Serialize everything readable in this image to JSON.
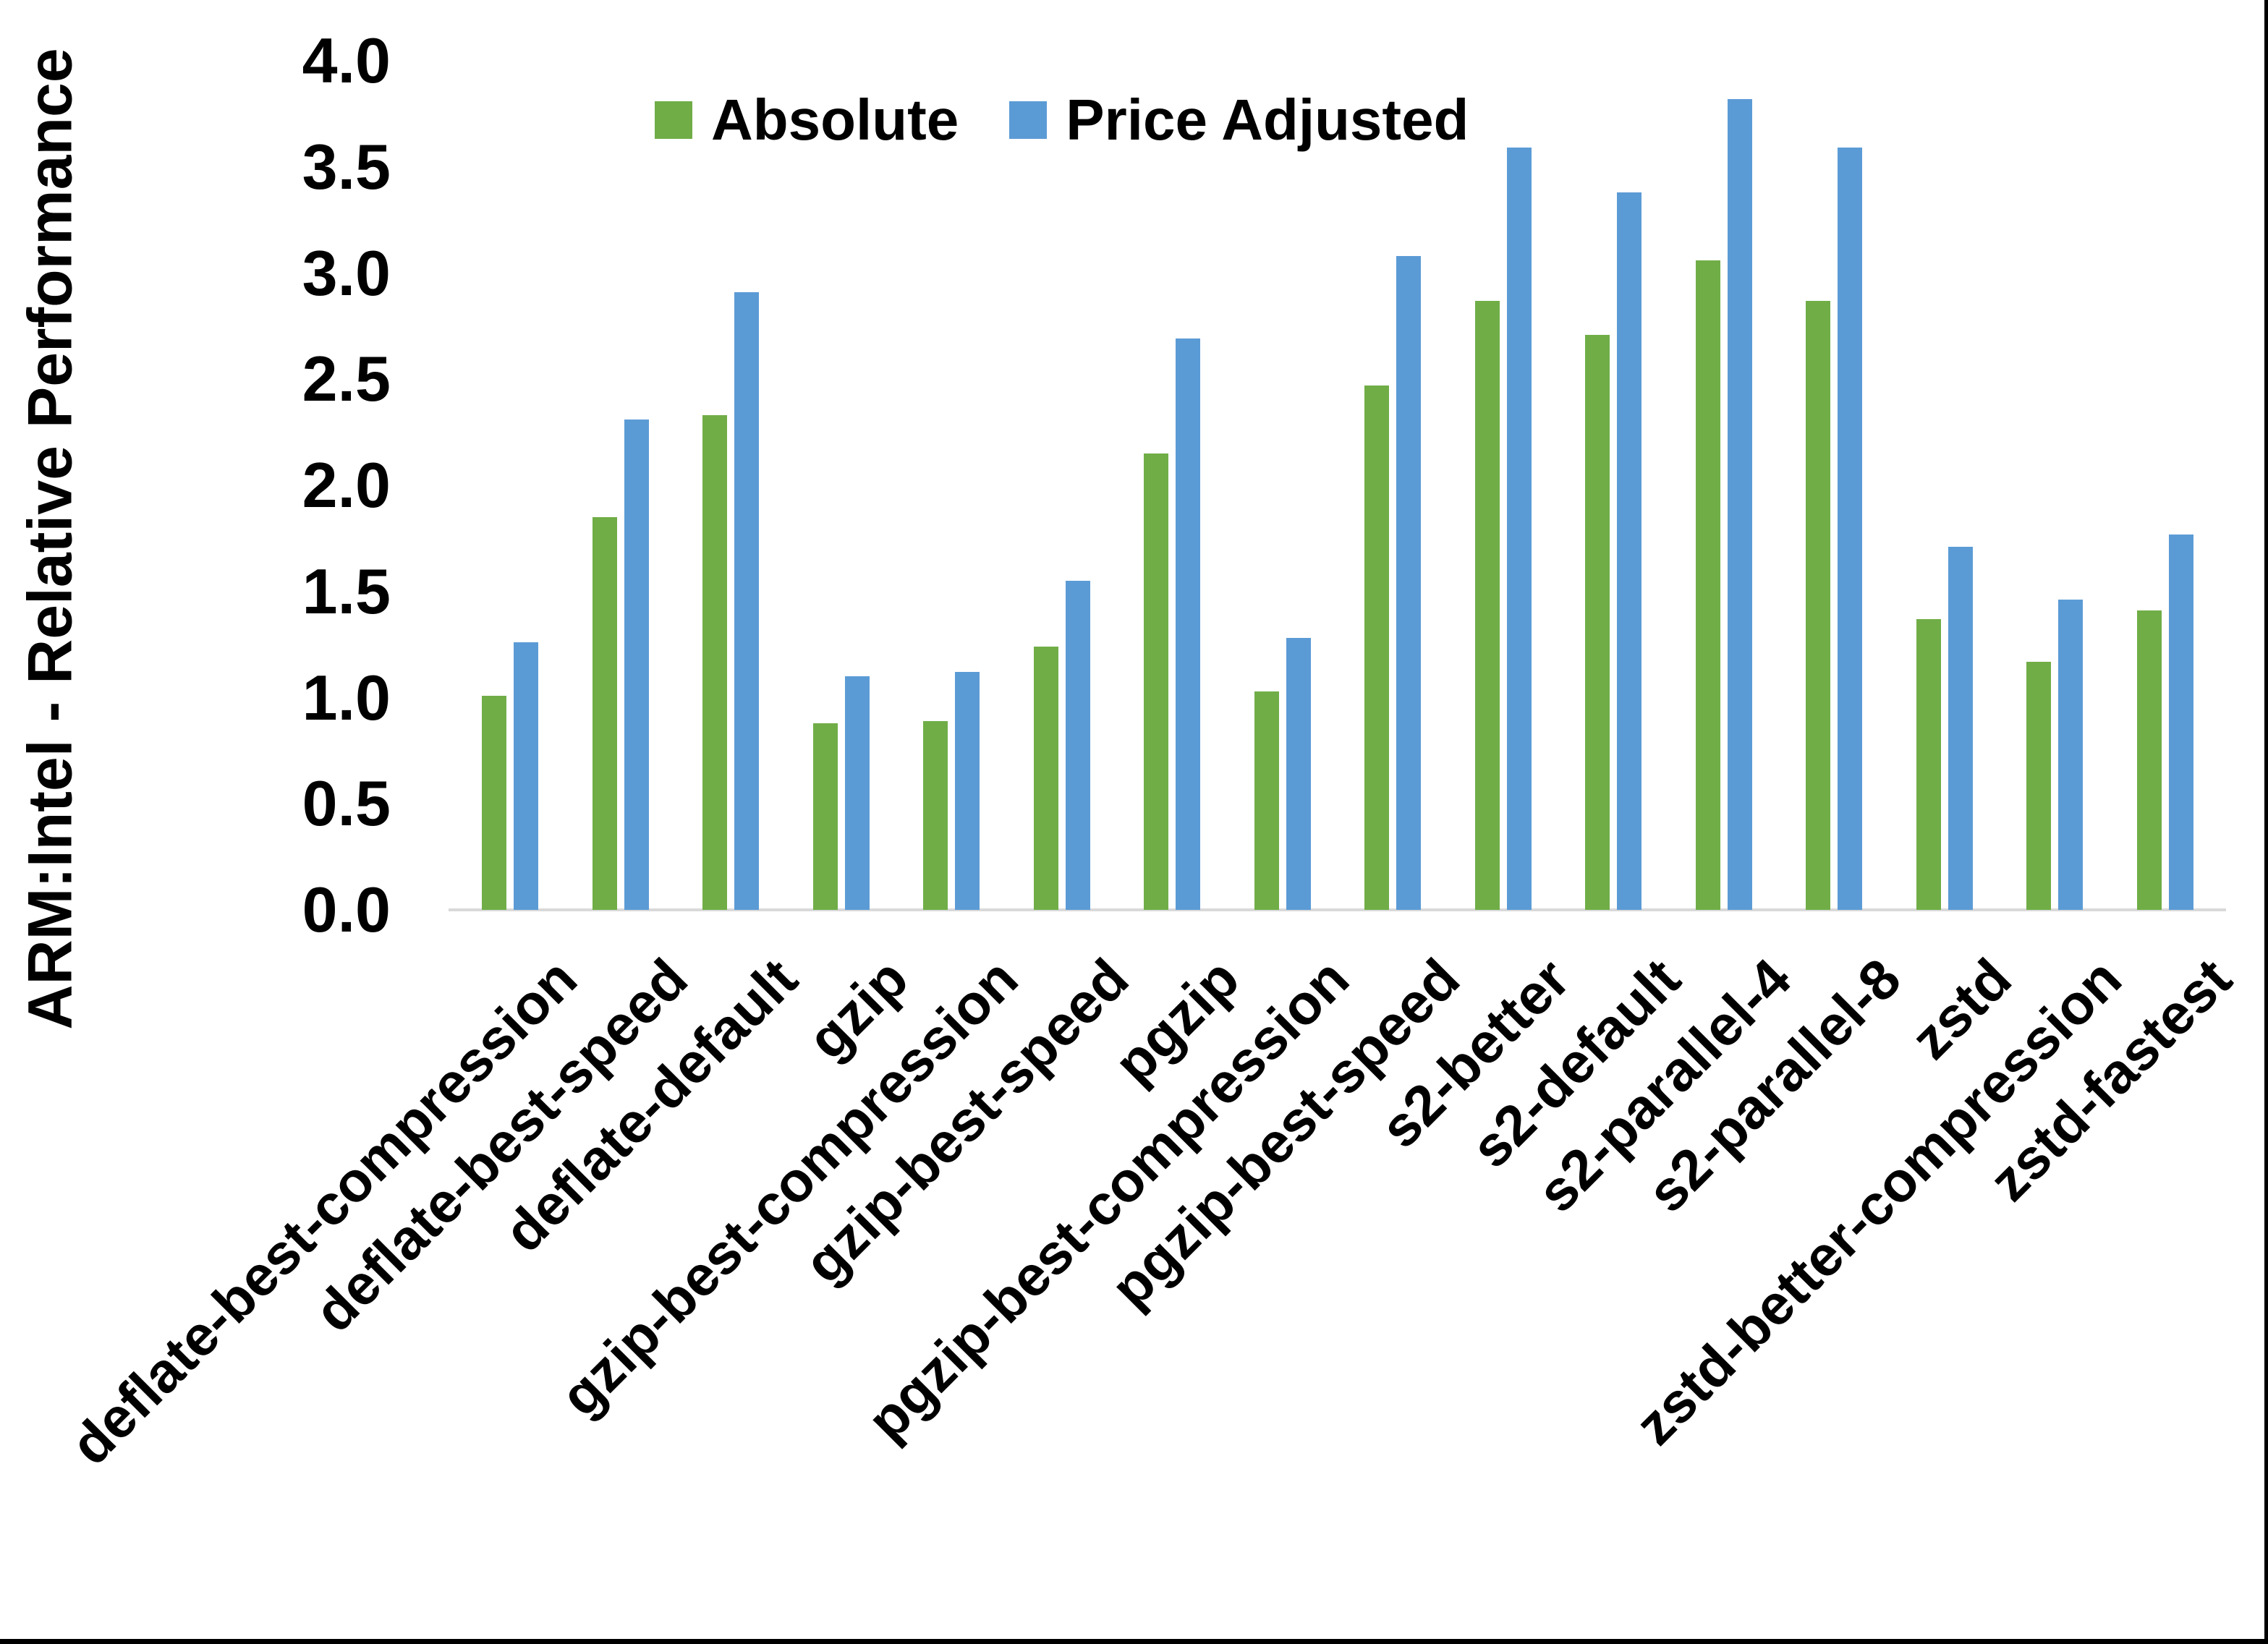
{
  "figure": {
    "background": "#ffffff",
    "border_color": "#000000"
  },
  "legend": {
    "items": [
      {
        "label": "Absolute",
        "color": "#70AD47"
      },
      {
        "label": "Price Adjusted",
        "color": "#5B9BD5"
      }
    ]
  },
  "chart_data": {
    "type": "bar",
    "title": "",
    "xlabel": "",
    "ylabel": "ARM:Intel - Relative Performance",
    "ylim": [
      0.0,
      4.0
    ],
    "ytick_step": 0.5,
    "ytick_labels": [
      "0.0",
      "0.5",
      "1.0",
      "1.5",
      "2.0",
      "2.5",
      "3.0",
      "3.5",
      "4.0"
    ],
    "grid": "off",
    "legend_position": "top-center",
    "categories": [
      "deflate-best-compression",
      "deflate-best-speed",
      "deflate-default",
      "gzip",
      "gzip-best-compression",
      "gzip-best-speed",
      "pgzip",
      "pgzip-best-compression",
      "pgzip-best-speed",
      "s2-better",
      "s2-default",
      "s2-parallel-4",
      "s2-parallel-8",
      "zstd",
      "zstd-better-compression",
      "zstd-fastest"
    ],
    "series": [
      {
        "name": "Absolute",
        "color": "#70AD47",
        "values": [
          1.01,
          1.85,
          2.33,
          0.88,
          0.89,
          1.24,
          2.15,
          1.03,
          2.47,
          2.87,
          2.71,
          3.06,
          2.87,
          1.37,
          1.17,
          1.41
        ]
      },
      {
        "name": "Price Adjusted",
        "color": "#5B9BD5",
        "values": [
          1.26,
          2.31,
          2.91,
          1.1,
          1.12,
          1.55,
          2.69,
          1.28,
          3.08,
          3.59,
          3.38,
          3.82,
          3.59,
          1.71,
          1.46,
          1.77
        ]
      }
    ]
  }
}
